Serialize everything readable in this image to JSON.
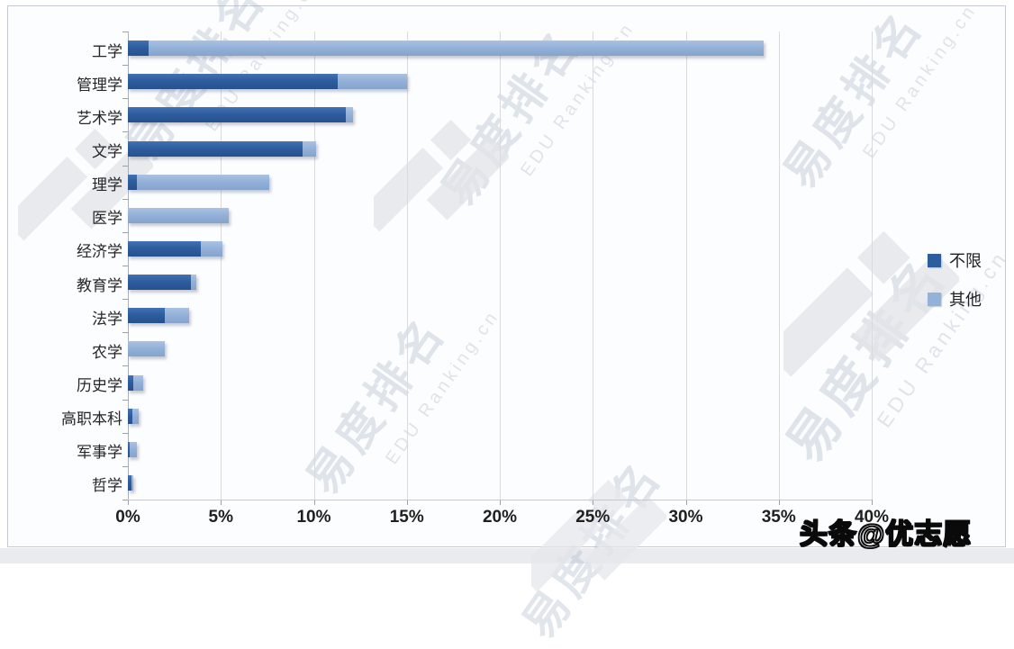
{
  "chart_data": {
    "type": "bar",
    "orientation": "horizontal-stacked",
    "categories": [
      "工学",
      "管理学",
      "艺术学",
      "文学",
      "理学",
      "医学",
      "经济学",
      "教育学",
      "法学",
      "农学",
      "历史学",
      "高职本科",
      "军事学",
      "哲学"
    ],
    "series": [
      {
        "name": "不限",
        "color": "#2e5d9e",
        "values": [
          1.1,
          11.3,
          11.7,
          9.4,
          0.5,
          0,
          3.9,
          3.4,
          2.0,
          0,
          0.3,
          0.25,
          0.1,
          0.2
        ]
      },
      {
        "name": "其他",
        "color": "#94b1d8",
        "values": [
          33.1,
          3.7,
          0.4,
          0.7,
          7.1,
          5.4,
          1.2,
          0.3,
          1.3,
          2.0,
          0.5,
          0.35,
          0.4,
          0.1
        ]
      }
    ],
    "x_tick_labels": [
      "0%",
      "5%",
      "10%",
      "15%",
      "20%",
      "25%",
      "30%",
      "35%",
      "40%"
    ],
    "xlim": [
      0,
      40
    ],
    "grid": "vertical",
    "legend_position": "right",
    "legend": [
      "不限",
      "其他"
    ]
  },
  "watermark": {
    "cn": "易度排名",
    "en": "EDU Ranking.cn",
    "toutiao": "头条@优志愿"
  }
}
